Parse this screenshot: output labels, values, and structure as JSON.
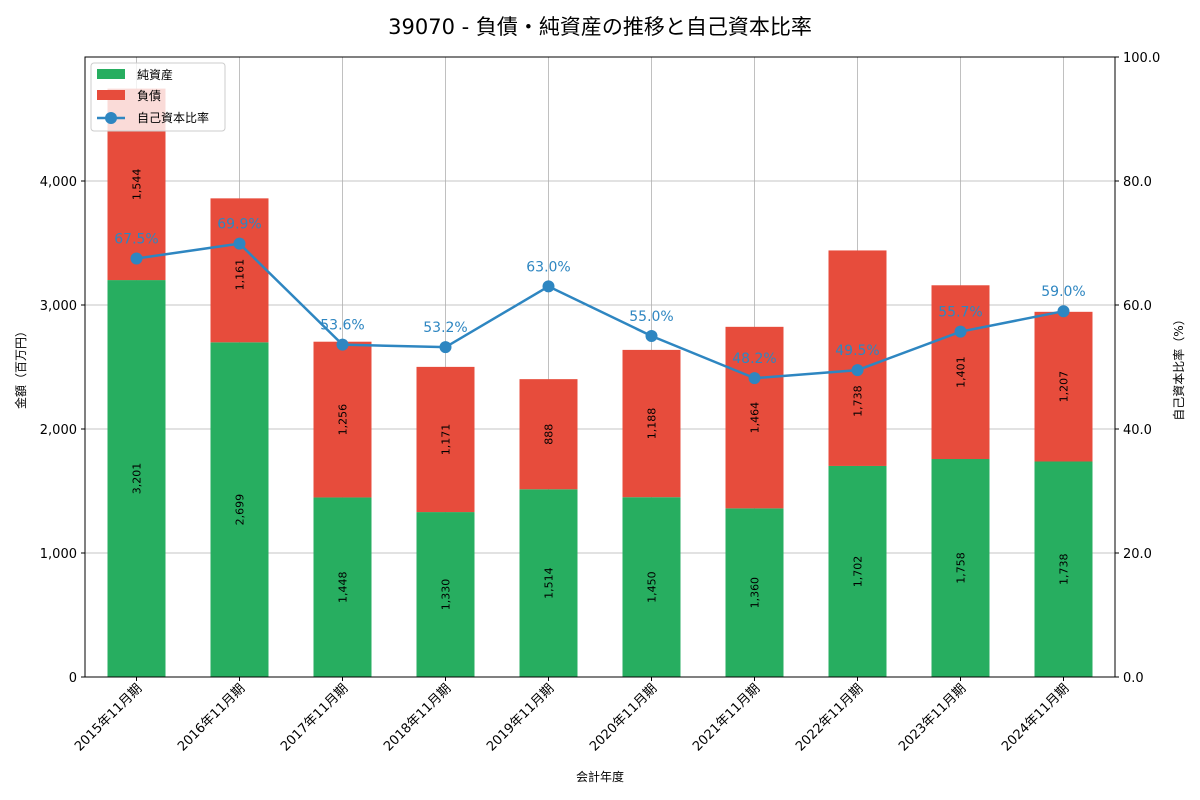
{
  "chart_data": {
    "type": "bar",
    "title": "39070 - 負債・純資産の推移と自己資本比率",
    "xlabel": "会計年度",
    "ylabel": "金額（百万円）",
    "y2label": "自己資本比率（%）",
    "ylim": [
      0,
      5000
    ],
    "y2lim": [
      0,
      100
    ],
    "yticks": [
      0,
      1000,
      2000,
      3000,
      4000
    ],
    "ytick_labels": [
      "0",
      "1,000",
      "2,000",
      "3,000",
      "4,000"
    ],
    "y2ticks": [
      0,
      20,
      40,
      60,
      80,
      100
    ],
    "y2tick_labels": [
      "0.0",
      "20.0",
      "40.0",
      "60.0",
      "80.0",
      "100.0"
    ],
    "grid": true,
    "legend_position": "top-left",
    "categories": [
      "2015年11月期",
      "2016年11月期",
      "2017年11月期",
      "2018年11月期",
      "2019年11月期",
      "2020年11月期",
      "2021年11月期",
      "2022年11月期",
      "2023年11月期",
      "2024年11月期"
    ],
    "series": [
      {
        "name": "純資産",
        "type": "bar",
        "stack": true,
        "color": "#27ae60",
        "values": [
          3201,
          2699,
          1448,
          1330,
          1514,
          1450,
          1360,
          1702,
          1758,
          1738
        ],
        "labels": [
          "3,201",
          "2,699",
          "1,448",
          "1,330",
          "1,514",
          "1,450",
          "1,360",
          "1,702",
          "1,758",
          "1,738"
        ]
      },
      {
        "name": "負債",
        "type": "bar",
        "stack": true,
        "color": "#e74c3c",
        "values": [
          1544,
          1161,
          1256,
          1171,
          888,
          1188,
          1464,
          1738,
          1401,
          1207
        ],
        "labels": [
          "1,544",
          "1,161",
          "1,256",
          "1,171",
          "888",
          "1,188",
          "1,464",
          "1,738",
          "1,401",
          "1,207"
        ]
      },
      {
        "name": "自己資本比率",
        "type": "line",
        "axis": "right",
        "color": "#2e86c1",
        "values": [
          67.5,
          69.9,
          53.6,
          53.2,
          63.0,
          55.0,
          48.2,
          49.5,
          55.7,
          59.0
        ],
        "labels": [
          "67.5%",
          "69.9%",
          "53.6%",
          "53.2%",
          "63.0%",
          "55.0%",
          "48.2%",
          "49.5%",
          "55.7%",
          "59.0%"
        ]
      }
    ]
  }
}
